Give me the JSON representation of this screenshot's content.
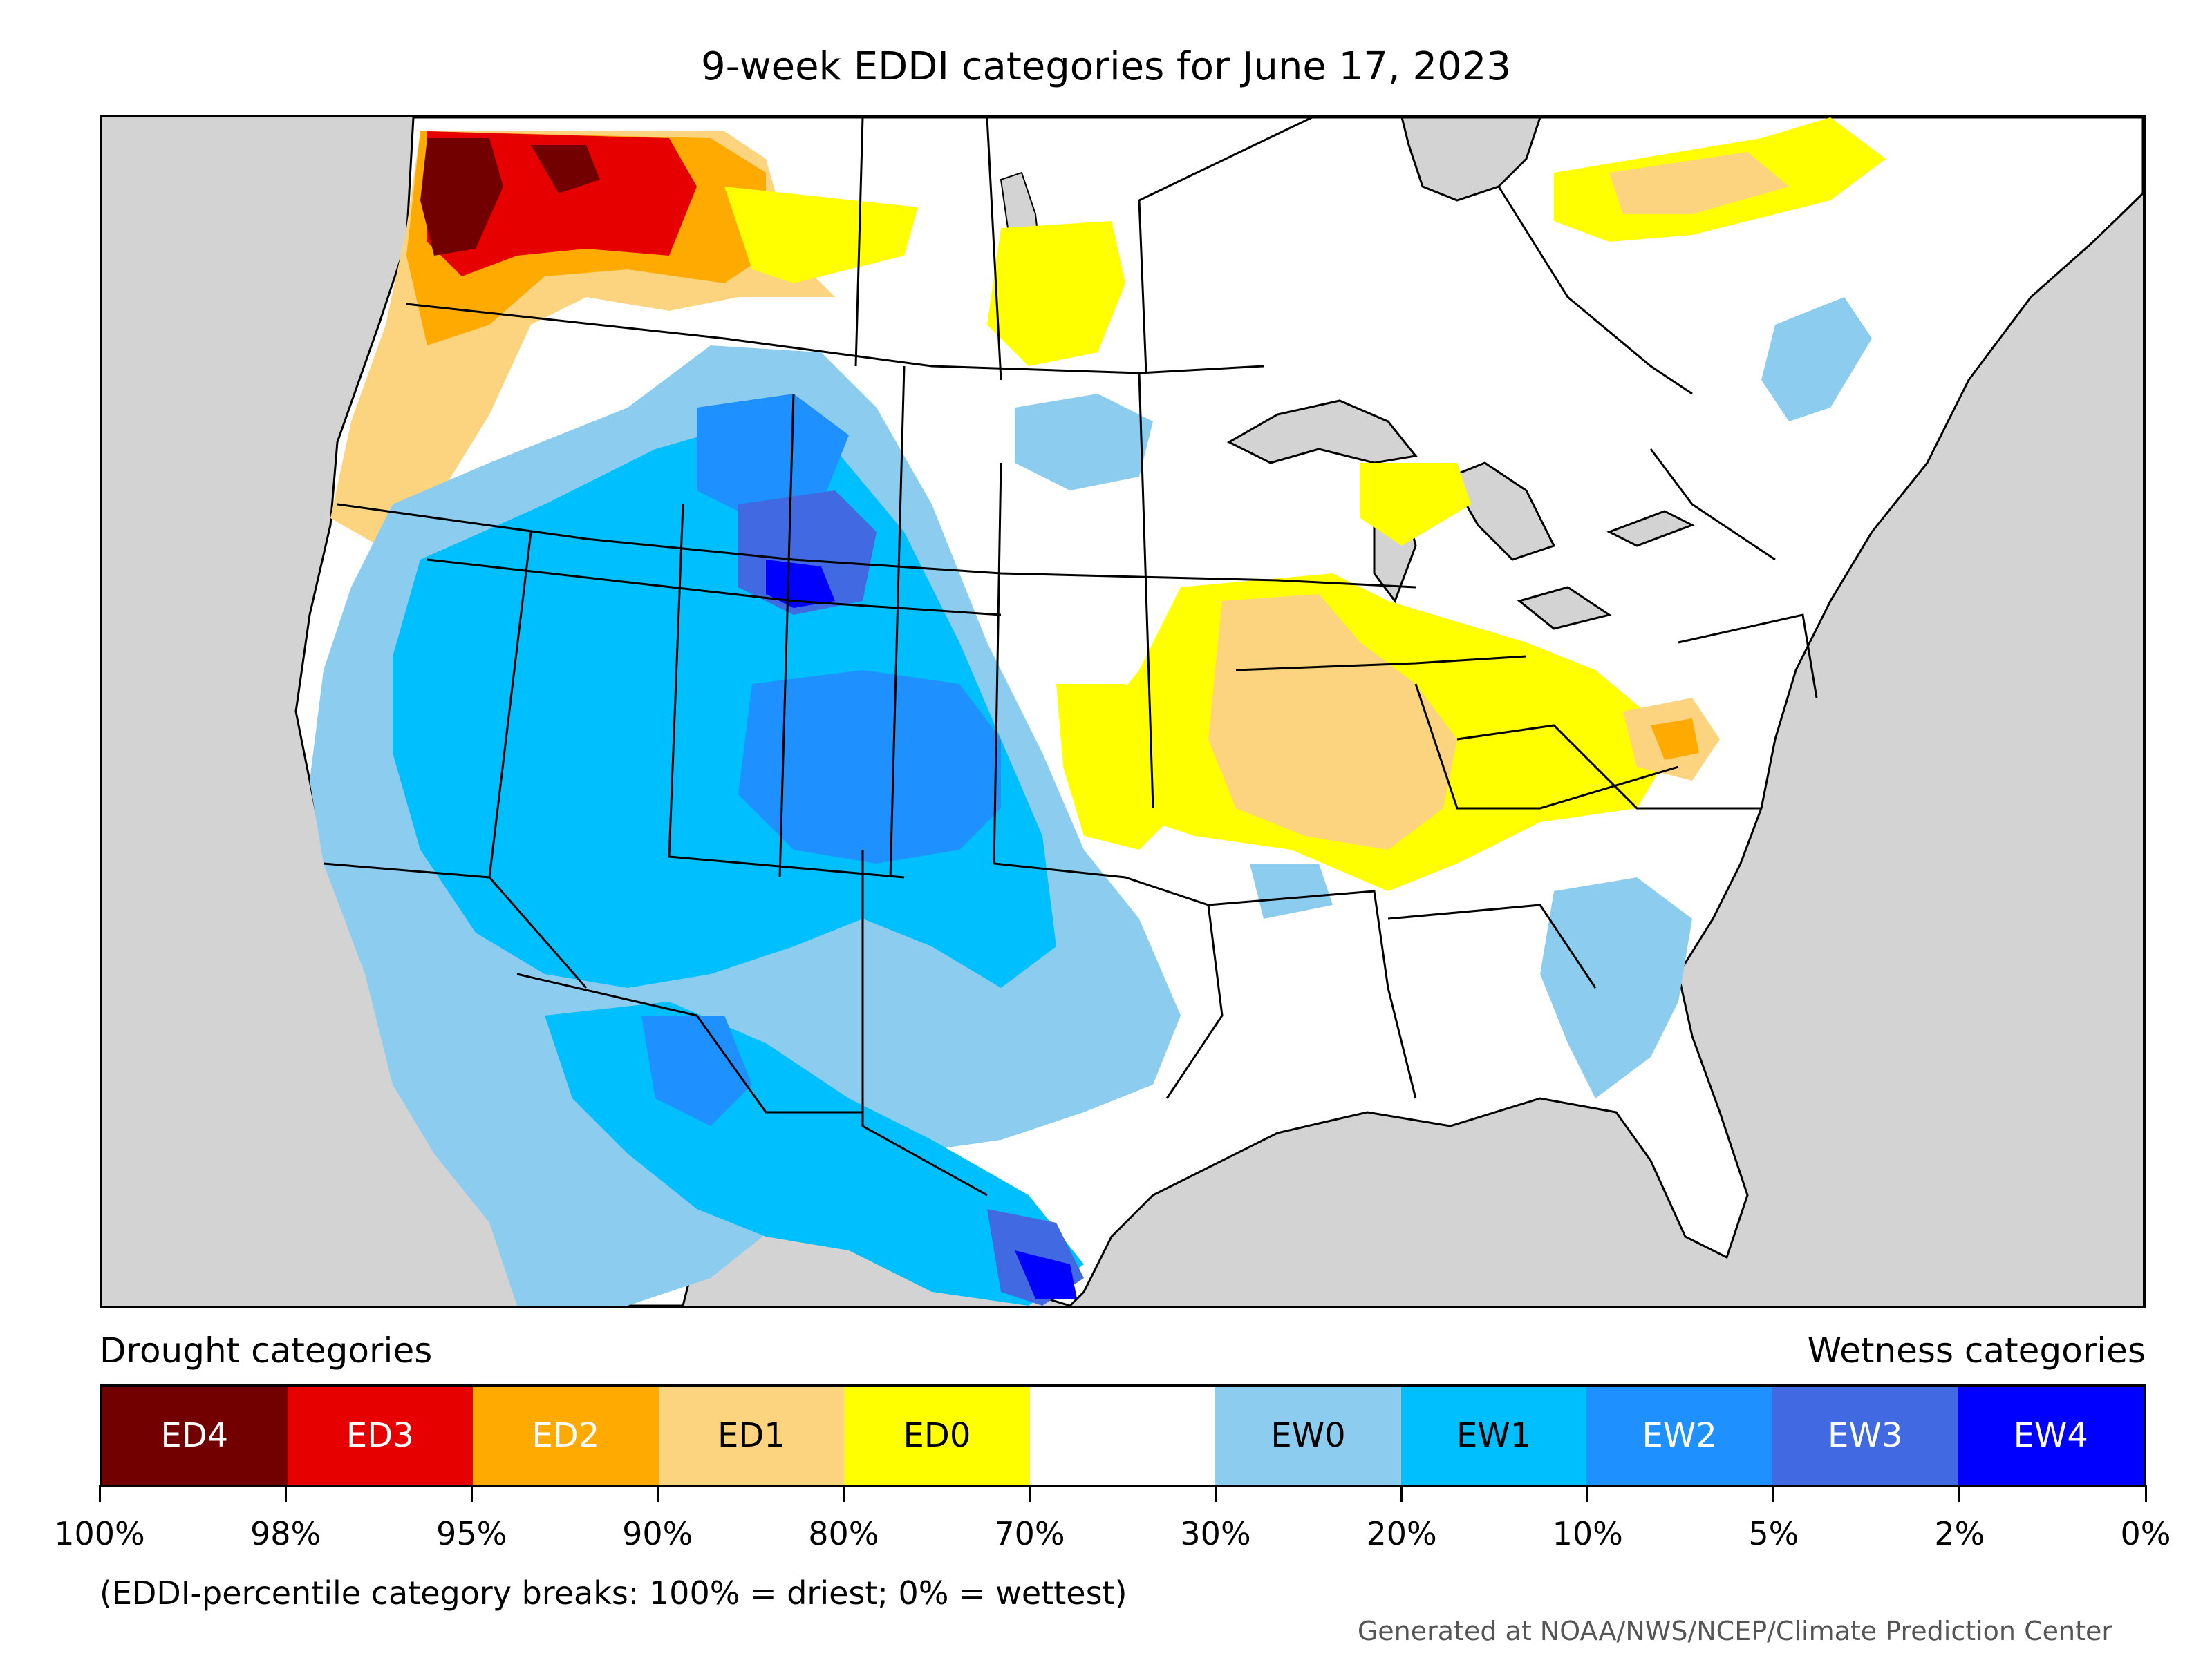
{
  "title": "9-week EDDI categories for June 17, 2023",
  "legend": {
    "drought_heading": "Drought categories",
    "wetness_heading": "Wetness categories",
    "categories": [
      {
        "label": "ED4",
        "color": "#730000",
        "text_color": "#ffffff"
      },
      {
        "label": "ED3",
        "color": "#e60000",
        "text_color": "#ffffff"
      },
      {
        "label": "ED2",
        "color": "#ffaa00",
        "text_color": "#ffffff"
      },
      {
        "label": "ED1",
        "color": "#fcd37f",
        "text_color": "#000000"
      },
      {
        "label": "ED0",
        "color": "#ffff00",
        "text_color": "#000000"
      },
      {
        "label": "",
        "color": "#ffffff",
        "text_color": "#000000"
      },
      {
        "label": "EW0",
        "color": "#8ccdef",
        "text_color": "#000000"
      },
      {
        "label": "EW1",
        "color": "#00bfff",
        "text_color": "#000000"
      },
      {
        "label": "EW2",
        "color": "#1e90ff",
        "text_color": "#ffffff"
      },
      {
        "label": "EW3",
        "color": "#4169e1",
        "text_color": "#ffffff"
      },
      {
        "label": "EW4",
        "color": "#0000ff",
        "text_color": "#ffffff"
      }
    ],
    "tick_labels": [
      "100%",
      "98%",
      "95%",
      "90%",
      "80%",
      "70%",
      "30%",
      "20%",
      "10%",
      "5%",
      "2%",
      "0%"
    ]
  },
  "note": "(EDDI-percentile category breaks: 100% = driest; 0% = wettest)",
  "credit": "Generated at NOAA/NWS/NCEP/Climate Prediction Center",
  "colors": {
    "ocean": "#d3d3d3",
    "land": "#ffffff",
    "border": "#000000"
  }
}
